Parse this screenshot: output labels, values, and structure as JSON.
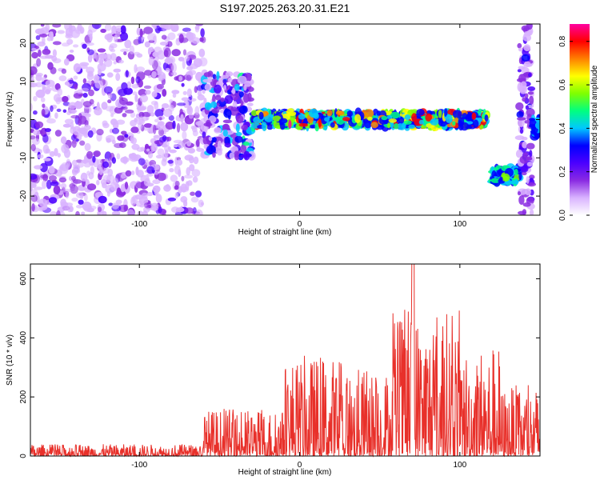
{
  "title": "S197.2025.263.20.31.E21",
  "chart_data": [
    {
      "type": "heatmap",
      "xlabel": "Height of straight line (km)",
      "ylabel": "Frequency (Hz)",
      "xlim": [
        -168,
        150
      ],
      "ylim": [
        -25,
        25
      ],
      "xticks": [
        -100,
        0,
        100
      ],
      "yticks": [
        -20,
        -10,
        0,
        10,
        20
      ],
      "colorbar": {
        "label": "Normalized spectral amplitude",
        "range": [
          0.0,
          0.88
        ],
        "ticks": [
          0.0,
          0.2,
          0.4,
          0.6,
          0.8
        ],
        "colormap": [
          "#ffffff",
          "#d9b3ff",
          "#8a2be2",
          "#4b00ff",
          "#0000ff",
          "#00c8ff",
          "#00ff80",
          "#7fff00",
          "#ffff00",
          "#ff8000",
          "#ff0000",
          "#ff00a0"
        ]
      },
      "regions": [
        {
          "x": [
            -168,
            -60
          ],
          "freq": [
            -25,
            25
          ],
          "character": "broadband noise",
          "amplitude": [
            0.05,
            0.25
          ]
        },
        {
          "x": [
            -60,
            -30
          ],
          "freq": [
            -10,
            12
          ],
          "character": "transition",
          "amplitude": [
            0.1,
            0.45
          ]
        },
        {
          "x": [
            -30,
            117
          ],
          "freq_center": 0,
          "freq_width": 4,
          "character": "narrowband signal",
          "amplitude": [
            0.3,
            0.85
          ]
        },
        {
          "x": [
            120,
            137
          ],
          "freq_center": -14.5,
          "freq_width": 4,
          "character": "narrowband signal",
          "amplitude": [
            0.3,
            0.55
          ]
        },
        {
          "x": [
            137,
            145
          ],
          "freq": [
            -25,
            25
          ],
          "character": "vertical broadband",
          "amplitude": [
            0.1,
            0.3
          ]
        },
        {
          "x": [
            145,
            150
          ],
          "freq_center": -2,
          "freq_width": 5,
          "character": "narrowband signal",
          "amplitude": [
            0.3,
            0.5
          ]
        }
      ]
    },
    {
      "type": "line",
      "xlabel": "Height of straight line (km)",
      "ylabel": "SNR (10 * v/v)",
      "xlim": [
        -168,
        150
      ],
      "ylim": [
        0,
        650
      ],
      "xticks": [
        -100,
        0,
        100
      ],
      "yticks": [
        0,
        200,
        400,
        600
      ],
      "color": "#e8302a",
      "envelope": [
        {
          "x": [
            -168,
            -60
          ],
          "y": [
            0,
            40
          ]
        },
        {
          "x": [
            -60,
            -10
          ],
          "y": [
            0,
            160
          ]
        },
        {
          "x": [
            -10,
            30
          ],
          "y": [
            0,
            340
          ]
        },
        {
          "x": [
            30,
            58
          ],
          "y": [
            0,
            300
          ]
        },
        {
          "x": [
            58,
            70
          ],
          "y": [
            0,
            500
          ]
        },
        {
          "x": [
            70,
            71
          ],
          "y": [
            0,
            650
          ]
        },
        {
          "x": [
            71,
            100
          ],
          "y": [
            0,
            500
          ]
        },
        {
          "x": [
            100,
            125
          ],
          "y": [
            0,
            380
          ]
        },
        {
          "x": [
            125,
            150
          ],
          "y": [
            0,
            240
          ]
        }
      ]
    }
  ]
}
